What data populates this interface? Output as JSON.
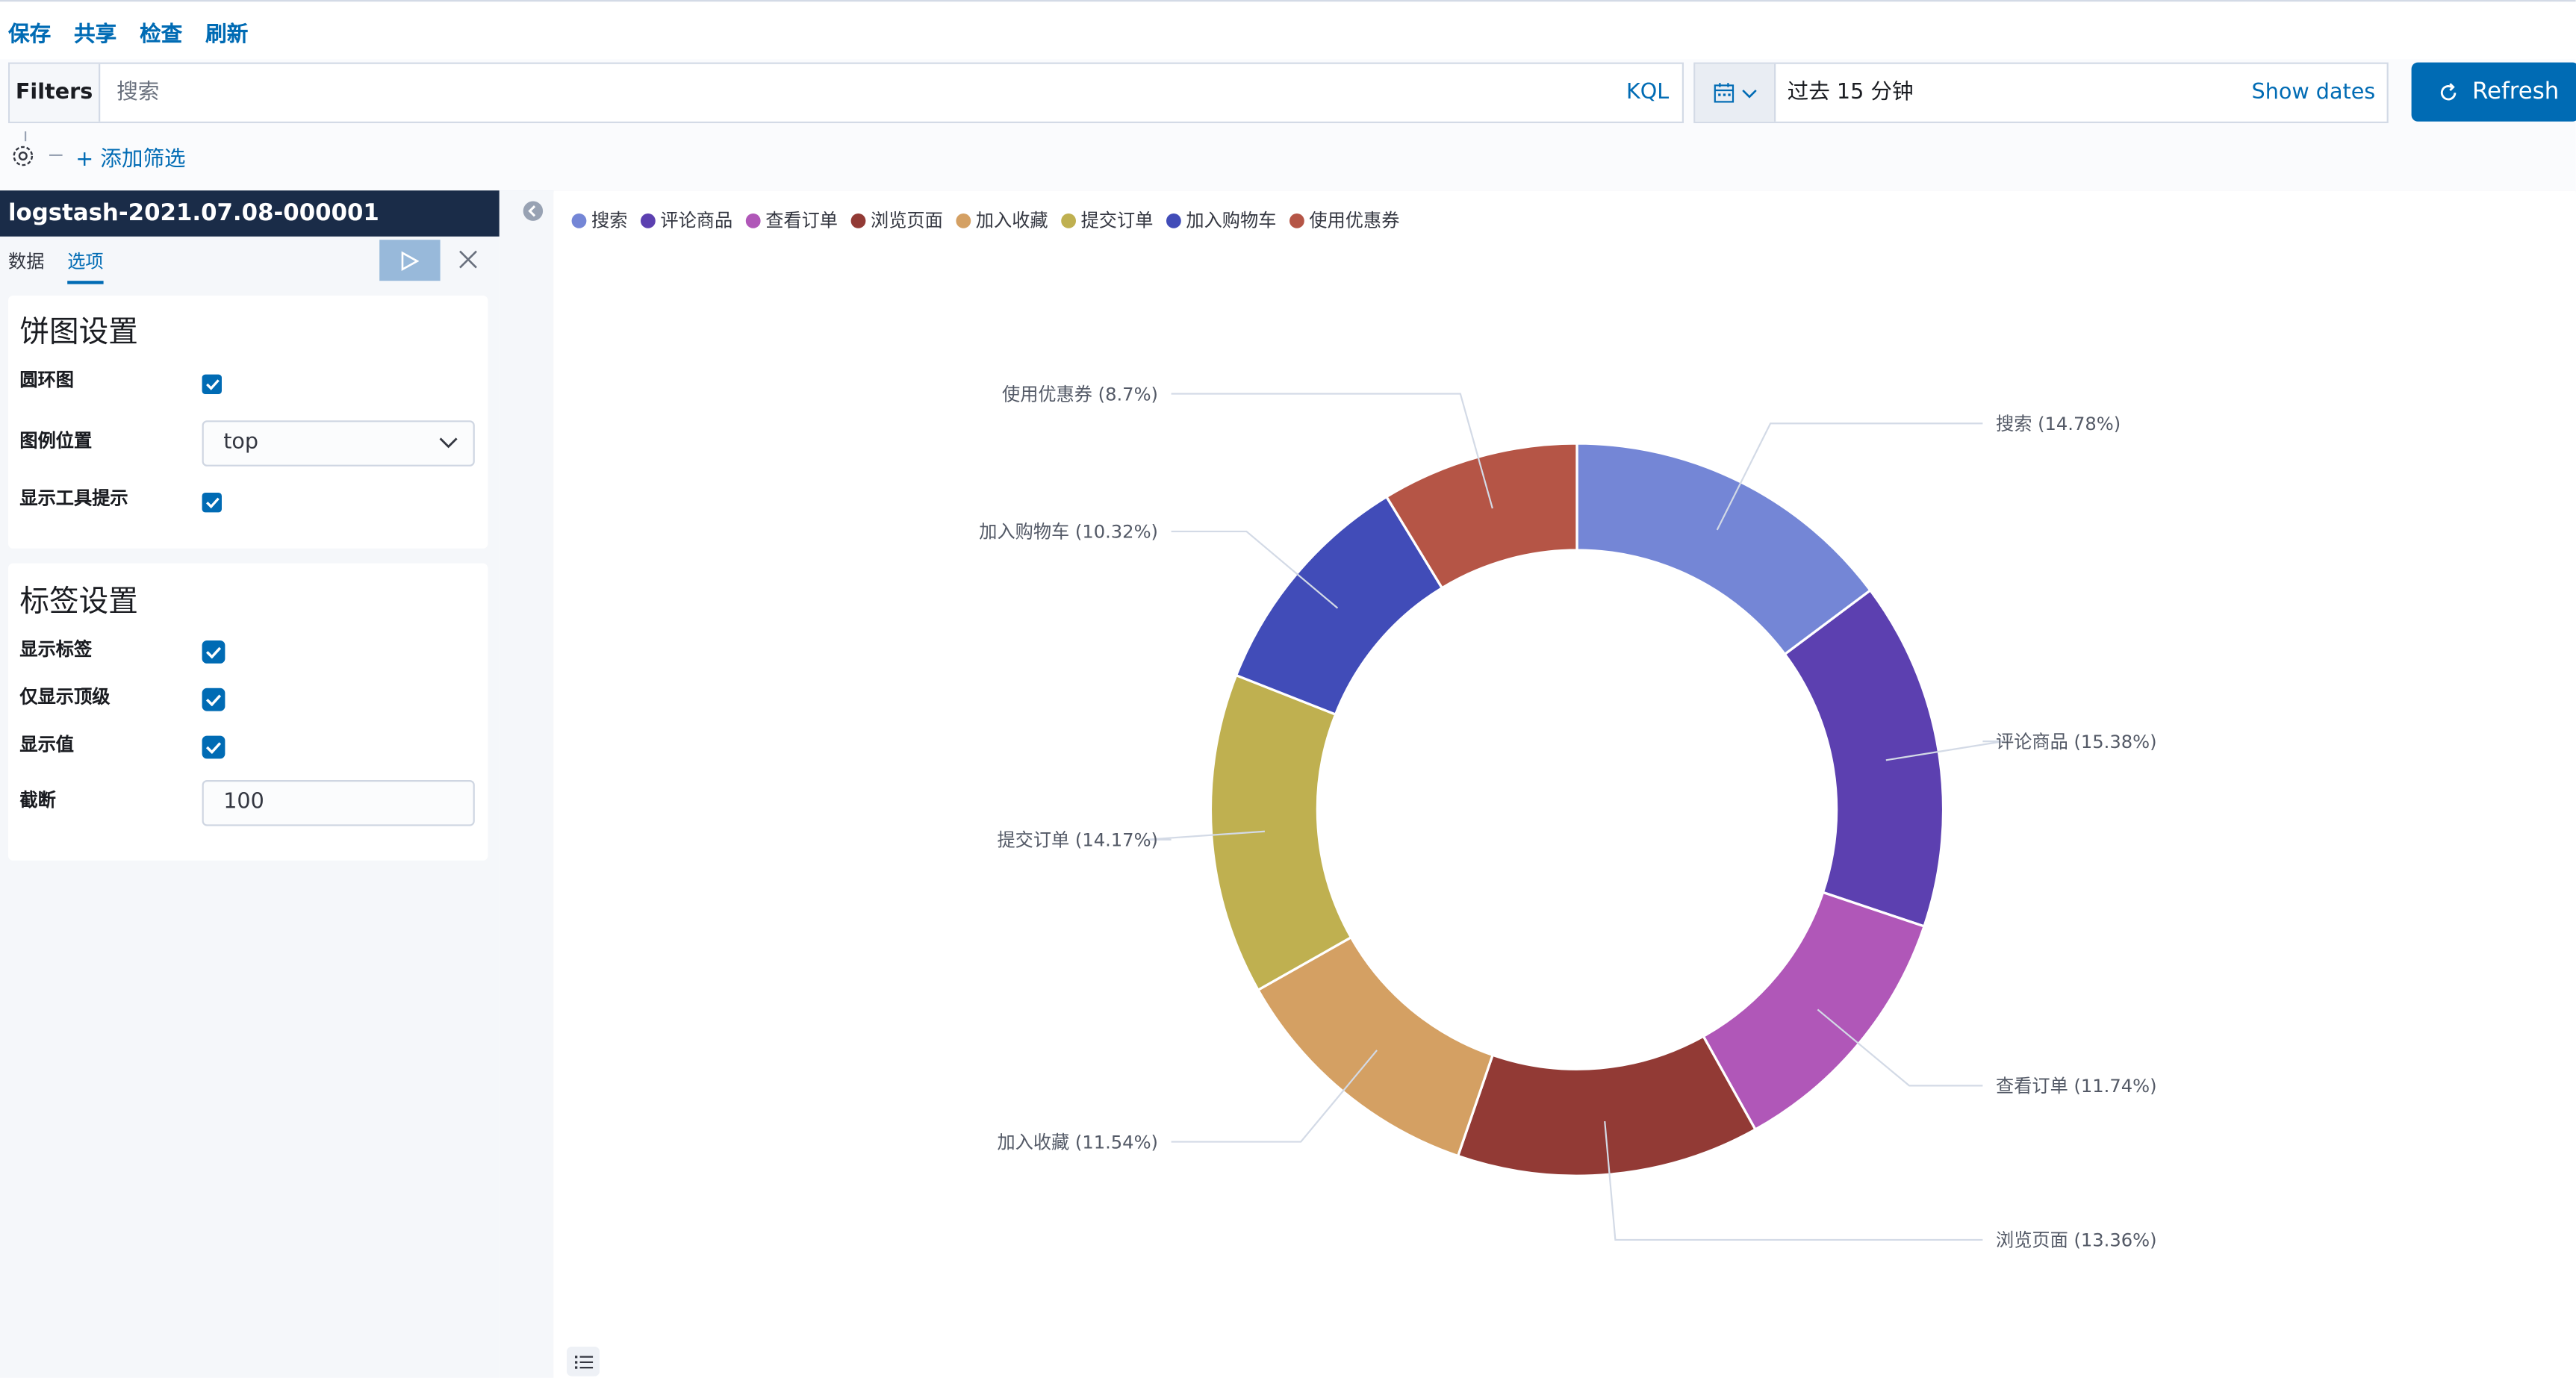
{
  "topnav": {
    "save": "保存",
    "share": "共享",
    "inspect": "检查",
    "refresh": "刷新"
  },
  "querybar": {
    "filters_label": "Filters",
    "search_placeholder": "搜索",
    "kql": "KQL",
    "date_text": "过去 15 分钟",
    "show_dates": "Show dates",
    "refresh_button": "Refresh",
    "add_filter": "+ 添加筛选"
  },
  "sidebar": {
    "index_title": "logstash-2021.07.08-000001",
    "tabs": [
      "数据",
      "选项"
    ],
    "active_tab": "选项",
    "pie_settings": {
      "title": "饼图设置",
      "donut_label": "圆环图",
      "donut": true,
      "legend_position_label": "图例位置",
      "legend_position": "top",
      "tooltip_label": "显示工具提示",
      "tooltip": true
    },
    "label_settings": {
      "title": "标签设置",
      "show_labels_label": "显示标签",
      "show_labels": true,
      "top_level_label": "仅显示顶级",
      "top_level": true,
      "show_values_label": "显示值",
      "show_values": true,
      "truncate_label": "截断",
      "truncate": "100"
    }
  },
  "chart_data": {
    "type": "pie",
    "donut": true,
    "legend_position": "top",
    "slices": [
      {
        "label": "搜索",
        "value": 14.78,
        "display": "搜索 (14.78%)",
        "color": "#7486d6"
      },
      {
        "label": "评论商品",
        "value": 15.38,
        "display": "评论商品 (15.38%)",
        "color": "#5c40b0"
      },
      {
        "label": "查看订单",
        "value": 11.74,
        "display": "查看订单 (11.74%)",
        "color": "#b057b8"
      },
      {
        "label": "浏览页面",
        "value": 13.36,
        "display": "浏览页面 (13.36%)",
        "color": "#923a35"
      },
      {
        "label": "加入收藏",
        "value": 11.54,
        "display": "加入收藏 (11.54%)",
        "color": "#d4a063"
      },
      {
        "label": "提交订单",
        "value": 14.17,
        "display": "提交订单 (14.17%)",
        "color": "#bfb050"
      },
      {
        "label": "加入购物车",
        "value": 10.32,
        "display": "加入购物车 (10.32%)",
        "color": "#414cb8"
      },
      {
        "label": "使用优惠券",
        "value": 8.7,
        "display": "使用优惠券 (8.7%)",
        "color": "#b55546"
      }
    ]
  }
}
